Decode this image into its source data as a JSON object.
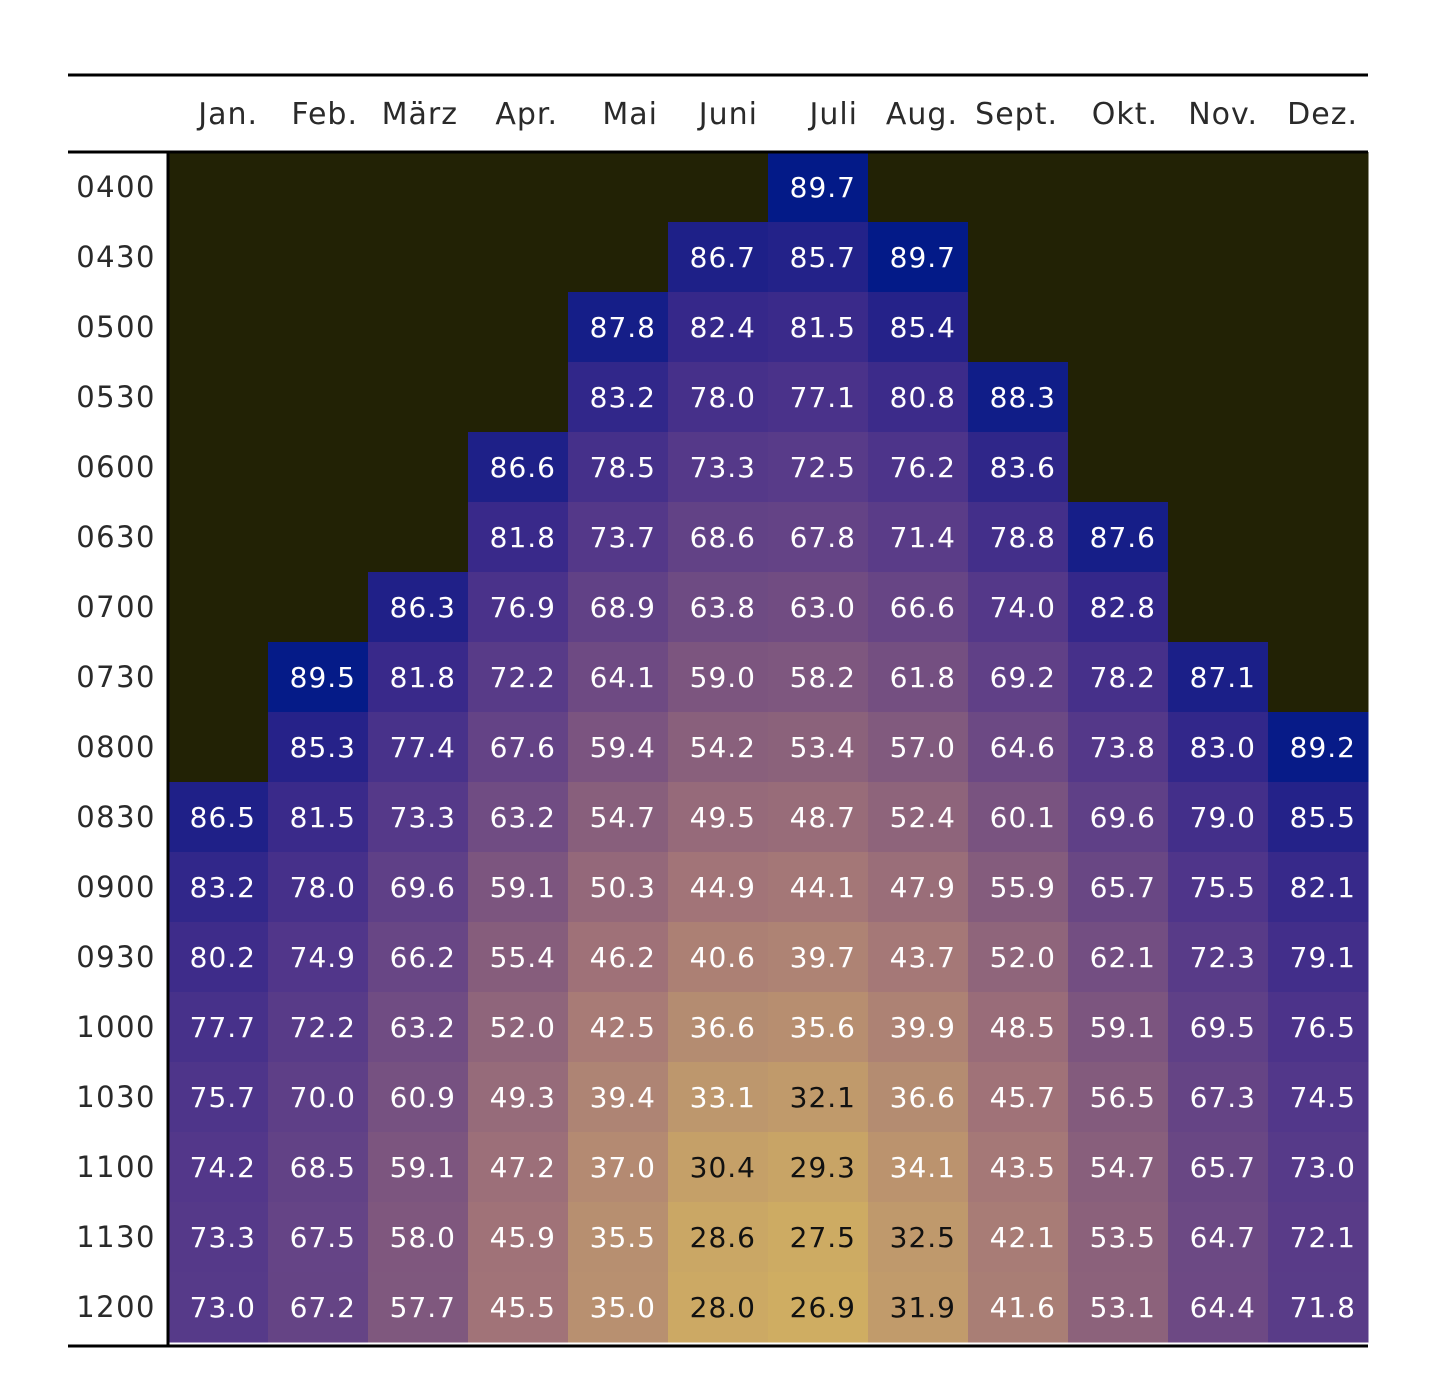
{
  "chart_data": {
    "type": "heatmap",
    "title": "",
    "columns": [
      "Jan.",
      "Feb.",
      "März",
      "Apr.",
      "Mai",
      "Juni",
      "Juli",
      "Aug.",
      "Sept.",
      "Okt.",
      "Nov.",
      "Dez."
    ],
    "rows": [
      "0400",
      "0430",
      "0500",
      "0530",
      "0600",
      "0630",
      "0700",
      "0730",
      "0800",
      "0830",
      "0900",
      "0930",
      "1000",
      "1030",
      "1100",
      "1130",
      "1200"
    ],
    "values": [
      [
        null,
        null,
        null,
        null,
        null,
        null,
        89.7,
        null,
        null,
        null,
        null,
        null
      ],
      [
        null,
        null,
        null,
        null,
        null,
        86.7,
        85.7,
        89.7,
        null,
        null,
        null,
        null
      ],
      [
        null,
        null,
        null,
        null,
        87.8,
        82.4,
        81.5,
        85.4,
        null,
        null,
        null,
        null
      ],
      [
        null,
        null,
        null,
        null,
        83.2,
        78.0,
        77.1,
        80.8,
        88.3,
        null,
        null,
        null
      ],
      [
        null,
        null,
        null,
        86.6,
        78.5,
        73.3,
        72.5,
        76.2,
        83.6,
        null,
        null,
        null
      ],
      [
        null,
        null,
        null,
        81.8,
        73.7,
        68.6,
        67.8,
        71.4,
        78.8,
        87.6,
        null,
        null
      ],
      [
        null,
        null,
        86.3,
        76.9,
        68.9,
        63.8,
        63.0,
        66.6,
        74.0,
        82.8,
        null,
        null
      ],
      [
        null,
        89.5,
        81.8,
        72.2,
        64.1,
        59.0,
        58.2,
        61.8,
        69.2,
        78.2,
        87.1,
        null
      ],
      [
        null,
        85.3,
        77.4,
        67.6,
        59.4,
        54.2,
        53.4,
        57.0,
        64.6,
        73.8,
        83.0,
        89.2
      ],
      [
        86.5,
        81.5,
        73.3,
        63.2,
        54.7,
        49.5,
        48.7,
        52.4,
        60.1,
        69.6,
        79.0,
        85.5
      ],
      [
        83.2,
        78.0,
        69.6,
        59.1,
        50.3,
        44.9,
        44.1,
        47.9,
        55.9,
        65.7,
        75.5,
        82.1
      ],
      [
        80.2,
        74.9,
        66.2,
        55.4,
        46.2,
        40.6,
        39.7,
        43.7,
        52.0,
        62.1,
        72.3,
        79.1
      ],
      [
        77.7,
        72.2,
        63.2,
        52.0,
        42.5,
        36.6,
        35.6,
        39.9,
        48.5,
        59.1,
        69.5,
        76.5
      ],
      [
        75.7,
        70.0,
        60.9,
        49.3,
        39.4,
        33.1,
        32.1,
        36.6,
        45.7,
        56.5,
        67.3,
        74.5
      ],
      [
        74.2,
        68.5,
        59.1,
        47.2,
        37.0,
        30.4,
        29.3,
        34.1,
        43.5,
        54.7,
        65.7,
        73.0
      ],
      [
        73.3,
        67.5,
        58.0,
        45.9,
        35.5,
        28.6,
        27.5,
        32.5,
        42.1,
        53.5,
        64.7,
        72.1
      ],
      [
        73.0,
        67.2,
        57.7,
        45.5,
        35.0,
        28.0,
        26.9,
        31.9,
        41.6,
        53.1,
        64.4,
        71.8
      ]
    ],
    "value_format": "0.0",
    "color_scale": {
      "min": 26.9,
      "max": 90.0,
      "stops": [
        {
          "value": 26.9,
          "color": "#cfad62"
        },
        {
          "value": 35.0,
          "color": "#b89070"
        },
        {
          "value": 45.0,
          "color": "#a27478"
        },
        {
          "value": 55.0,
          "color": "#875e7c"
        },
        {
          "value": 65.0,
          "color": "#6b4884"
        },
        {
          "value": 75.0,
          "color": "#51368a"
        },
        {
          "value": 82.0,
          "color": "#38298a"
        },
        {
          "value": 87.0,
          "color": "#1c1f88"
        },
        {
          "value": 90.0,
          "color": "#001a88"
        }
      ]
    },
    "missing_color": "#222205",
    "text_dark_below": 33.0,
    "text_colors": {
      "light": "#ffffff",
      "dark": "#111111"
    }
  }
}
